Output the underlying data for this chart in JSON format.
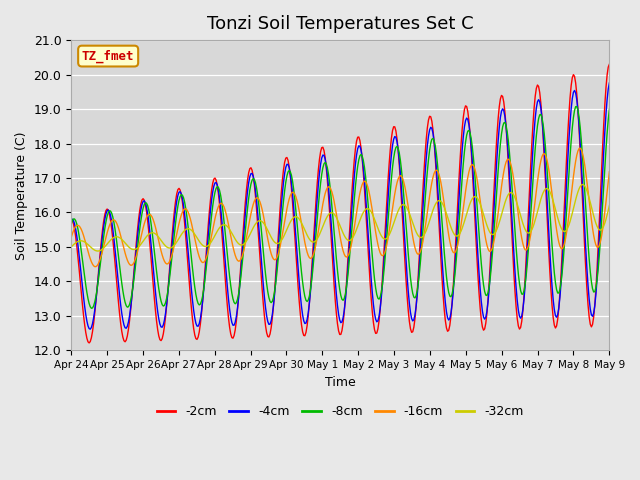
{
  "title": "Tonzi Soil Temperatures Set C",
  "xlabel": "Time",
  "ylabel": "Soil Temperature (C)",
  "annotation": "TZ_fmet",
  "ylim": [
    12.0,
    21.0
  ],
  "yticks": [
    12.0,
    13.0,
    14.0,
    15.0,
    16.0,
    17.0,
    18.0,
    19.0,
    20.0,
    21.0
  ],
  "xtick_labels": [
    "Apr 24",
    "Apr 25",
    "Apr 26",
    "Apr 27",
    "Apr 28",
    "Apr 29",
    "Apr 30",
    "May 1",
    "May 2",
    "May 3",
    "May 4",
    "May 5",
    "May 6",
    "May 7",
    "May 8",
    "May 9"
  ],
  "series_labels": [
    "-2cm",
    "-4cm",
    "-8cm",
    "-16cm",
    "-32cm"
  ],
  "series_colors": [
    "#ff0000",
    "#0000ff",
    "#00bb00",
    "#ff8800",
    "#cccc00"
  ],
  "background_color": "#e8e8e8",
  "plot_bg_color": "#d8d8d8",
  "title_fontsize": 13,
  "annotation_bg": "#ffffcc",
  "annotation_border": "#cc8800",
  "annotation_text_color": "#cc0000",
  "n_points": 480,
  "time_days": 15
}
